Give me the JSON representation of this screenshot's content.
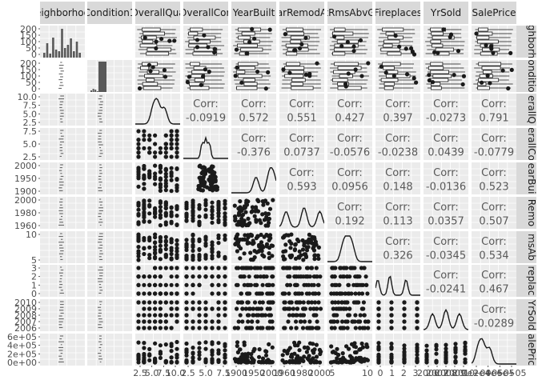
{
  "chart_data": {
    "type": "scatterplot-matrix",
    "variables": [
      "Neighborhood",
      "Condition1",
      "OverallQual",
      "OverallCond",
      "YearBuilt",
      "YearRemodAdd",
      "TotRmsAbvGrd",
      "Fireplaces",
      "YrSold",
      "SalePrice"
    ],
    "column_strip_labels": [
      "eighborhoo",
      "Condition1",
      "OverallQua",
      "OverallCon",
      "YearBuilt",
      "arRemodA",
      "tRmsAbvG",
      "Fireplaces",
      "YrSold",
      "SalePrice"
    ],
    "row_strip_labels": [
      "ghborh",
      "onditio",
      "erallQ",
      "erallCo",
      "earBui",
      "Remo",
      "msAb",
      "replac",
      "YrSold",
      "alePric"
    ],
    "corr_label": "Corr:",
    "correlations": [
      {
        "row": 2,
        "col": 3,
        "value": "-0.0919"
      },
      {
        "row": 2,
        "col": 4,
        "value": "0.572"
      },
      {
        "row": 2,
        "col": 5,
        "value": "0.551"
      },
      {
        "row": 2,
        "col": 6,
        "value": "0.427"
      },
      {
        "row": 2,
        "col": 7,
        "value": "0.397"
      },
      {
        "row": 2,
        "col": 8,
        "value": "-0.0273"
      },
      {
        "row": 2,
        "col": 9,
        "value": "0.791"
      },
      {
        "row": 3,
        "col": 4,
        "value": "-0.376"
      },
      {
        "row": 3,
        "col": 5,
        "value": "0.0737"
      },
      {
        "row": 3,
        "col": 6,
        "value": "-0.0576"
      },
      {
        "row": 3,
        "col": 7,
        "value": "-0.0238"
      },
      {
        "row": 3,
        "col": 8,
        "value": "0.0439"
      },
      {
        "row": 3,
        "col": 9,
        "value": "-0.0779"
      },
      {
        "row": 4,
        "col": 5,
        "value": "0.593"
      },
      {
        "row": 4,
        "col": 6,
        "value": "0.0956"
      },
      {
        "row": 4,
        "col": 7,
        "value": "0.148"
      },
      {
        "row": 4,
        "col": 8,
        "value": "-0.0136"
      },
      {
        "row": 4,
        "col": 9,
        "value": "0.523"
      },
      {
        "row": 5,
        "col": 6,
        "value": "0.192"
      },
      {
        "row": 5,
        "col": 7,
        "value": "0.113"
      },
      {
        "row": 5,
        "col": 8,
        "value": "0.0357"
      },
      {
        "row": 5,
        "col": 9,
        "value": "0.507"
      },
      {
        "row": 6,
        "col": 7,
        "value": "0.326"
      },
      {
        "row": 6,
        "col": 8,
        "value": "-0.0345"
      },
      {
        "row": 6,
        "col": 9,
        "value": "0.534"
      },
      {
        "row": 7,
        "col": 8,
        "value": "-0.0241"
      },
      {
        "row": 7,
        "col": 9,
        "value": "0.467"
      },
      {
        "row": 8,
        "col": 9,
        "value": "-0.0289"
      }
    ],
    "row_ticks": [
      [
        "200",
        "150",
        "100",
        "50",
        "0"
      ],
      [
        "200",
        "150",
        "100",
        "50",
        "0"
      ],
      [
        "10.0",
        "7.5",
        "5.0",
        "2.5"
      ],
      [
        "7.5",
        "5.0",
        "2.5"
      ],
      [
        "2000",
        "1950",
        "1900"
      ],
      [
        "2000",
        "1980",
        "1960"
      ],
      [
        "10",
        "5"
      ],
      [
        "3",
        "2",
        "1",
        "0"
      ],
      [
        "2010",
        "2009",
        "2008",
        "2007",
        "2006"
      ],
      [
        "6e+05",
        "4e+05",
        "2e+05",
        "0e+00"
      ]
    ],
    "col_ticks": [
      [],
      [],
      [
        "2.5",
        "5.0",
        "7.5",
        "10.0"
      ],
      [
        "2.5",
        "5.0",
        "7.5"
      ],
      [
        "1900",
        "1950",
        "2000"
      ],
      [
        "1960",
        "1980",
        "2000"
      ],
      [
        "5",
        "10"
      ],
      [
        "0",
        "1",
        "2",
        "3"
      ],
      [
        "2006",
        "2007",
        "2008",
        "2009",
        "2010"
      ],
      [
        "0e+00",
        "2e+05",
        "4e+05",
        "6e+05"
      ]
    ],
    "colors": {
      "panel_bg": "#ebebeb",
      "strip_bg": "#d9d9d9",
      "grid": "#ffffff",
      "ink": "#1a1a1a",
      "tick_text": "#4d4d4d",
      "corr_text": "#595959"
    }
  }
}
